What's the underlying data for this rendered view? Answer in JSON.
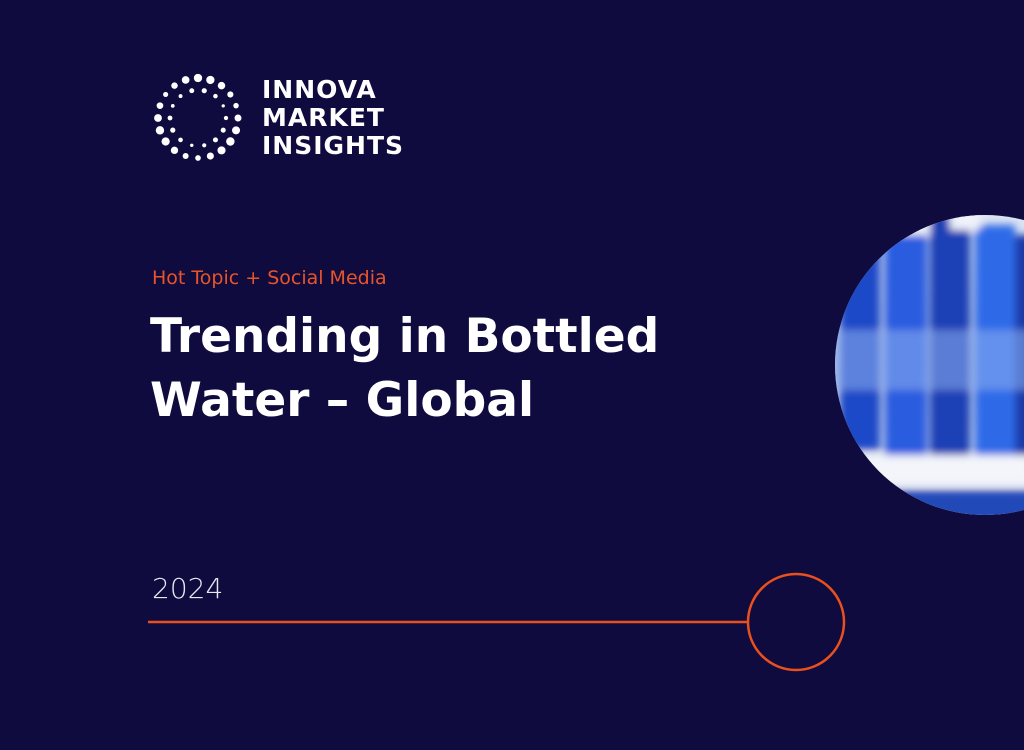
{
  "logo": {
    "lines": [
      "INNOVA",
      "MARKET",
      "INSIGHTS"
    ]
  },
  "subtitle": "Hot Topic + Social Media",
  "title": {
    "lines": [
      "Trending in Bottled",
      "Water – Global"
    ]
  },
  "year": "2024"
}
